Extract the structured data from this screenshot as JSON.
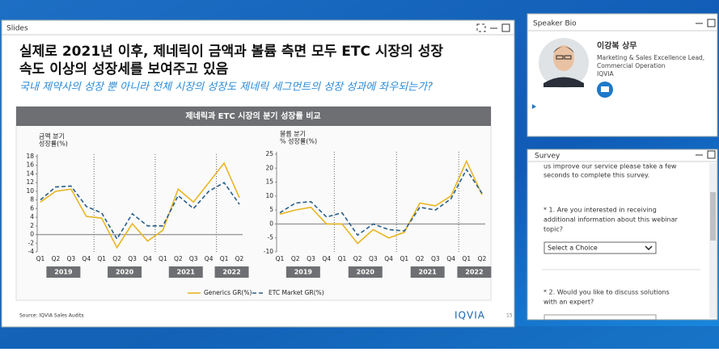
{
  "slides_panel": {
    "title": "Slides"
  },
  "slide": {
    "title_lines": [
      "실제로 2021년 이후, 제네릭이 금액과 볼륨 측면 모두 ETC 시장의 성장",
      "속도 이상의 성장세를 보여주고 있음"
    ],
    "subtitle": "국내 제약사의 성장 뿐 아니라 전체 시장의 성장도 제네릭 세그먼트의 성장 성과에 좌우되는가?",
    "banner": "제네릭과 ETC 시장의 분기 성장률 비교",
    "source": "Source: IQVIA Sales Audits",
    "logo": "IQVIA",
    "page_number": "15"
  },
  "chart_data": [
    {
      "type": "line",
      "y_label": [
        "금액 분기",
        "성장률(%)"
      ],
      "categories": [
        "Q1",
        "Q2",
        "Q3",
        "Q4",
        "Q1",
        "Q2",
        "Q3",
        "Q4",
        "Q1",
        "Q2",
        "Q3",
        "Q4",
        "Q1",
        "Q2"
      ],
      "groups": [
        "2019",
        "2020",
        "2021",
        "2022"
      ],
      "ylim": [
        -4,
        18
      ],
      "yticks": [
        -4,
        -2,
        0,
        2,
        4,
        6,
        8,
        10,
        12,
        14,
        16,
        18
      ],
      "series": [
        {
          "name": "Generics GR(%)",
          "color": "#e8b623",
          "dashed": false,
          "values": [
            7.5,
            10,
            10.5,
            4.2,
            3.8,
            -3,
            2.5,
            -1.5,
            1,
            10.5,
            7.5,
            12,
            16.5,
            8.5
          ]
        },
        {
          "name": "ETC Market GR(%)",
          "color": "#2a5f8a",
          "dashed": true,
          "values": [
            8,
            11,
            11.2,
            6.5,
            5,
            -1,
            4.8,
            2,
            2,
            9,
            6,
            10,
            12,
            7
          ]
        }
      ]
    },
    {
      "type": "line",
      "y_label": [
        "볼륨 분기",
        "% 성장률(%)"
      ],
      "categories": [
        "Q1",
        "Q2",
        "Q3",
        "Q4",
        "Q1",
        "Q2",
        "Q3",
        "Q4",
        "Q1",
        "Q2",
        "Q3",
        "Q4",
        "Q1",
        "Q2"
      ],
      "groups": [
        "2019",
        "2020",
        "2021",
        "2022"
      ],
      "ylim": [
        -10,
        25
      ],
      "yticks": [
        -10,
        -5,
        0,
        5,
        10,
        15,
        20,
        25
      ],
      "series": [
        {
          "name": "Generics GR(%)",
          "color": "#e8b623",
          "dashed": false,
          "values": [
            3.5,
            5,
            6,
            0,
            0,
            -7,
            -2,
            -5,
            -3,
            7.5,
            6.5,
            10,
            22.5,
            10.5
          ]
        },
        {
          "name": "ETC Market GR(%)",
          "color": "#2a5f8a",
          "dashed": true,
          "values": [
            4,
            7.5,
            8,
            2.5,
            4,
            -4,
            0,
            -2,
            -2.5,
            6,
            5,
            9,
            19.5,
            11
          ]
        }
      ]
    }
  ],
  "speaker_bio": {
    "title": "Speaker Bio",
    "name": "이강복 상무",
    "lines": [
      "Marketing & Sales Excellence Lead,",
      "Commercial Operation",
      "IQVIA"
    ]
  },
  "survey": {
    "title": "Survey",
    "intro": [
      "us improve our service please take a few",
      "seconds to complete this survey."
    ],
    "q1": [
      "* 1. Are you interested in receiving",
      "additional information about this webinar",
      "topic?"
    ],
    "select": "Select a Choice",
    "q2": [
      "* 2. Would you like to discuss solutions",
      "with an expert?"
    ]
  }
}
